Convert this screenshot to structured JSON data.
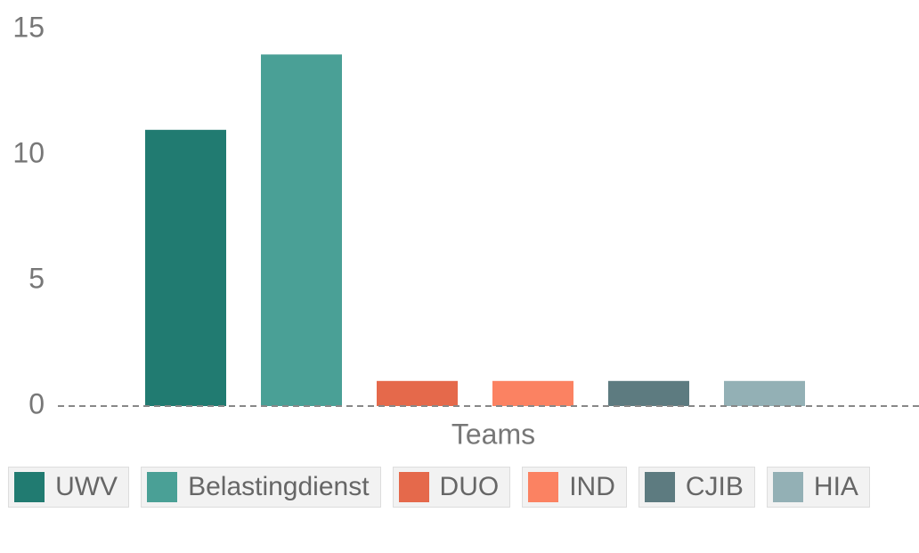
{
  "chart_data": {
    "type": "bar",
    "xlabel": "Teams",
    "series": [
      {
        "name": "UWV",
        "color": "#217b71",
        "values": [
          11
        ]
      },
      {
        "name": "Belastingdienst",
        "color": "#4aa096",
        "values": [
          14
        ]
      },
      {
        "name": "DUO",
        "color": "#e5694b",
        "values": [
          1
        ]
      },
      {
        "name": "IND",
        "color": "#fb8262",
        "values": [
          1
        ]
      },
      {
        "name": "CJIB",
        "color": "#5d7b80",
        "values": [
          1
        ]
      },
      {
        "name": "HIA",
        "color": "#93b0b5",
        "values": [
          1
        ]
      }
    ],
    "ylim": [
      0,
      15
    ],
    "yticks": [
      0,
      5,
      10,
      15
    ],
    "grid": false
  }
}
